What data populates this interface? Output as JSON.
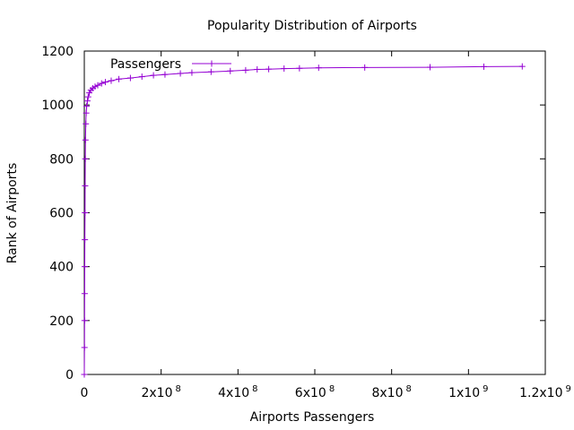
{
  "chart_data": {
    "type": "line",
    "title": "Popularity Distribution of Airports",
    "xlabel": "Airports Passengers",
    "ylabel": "Rank of Airports",
    "xlim": [
      0,
      1200000000
    ],
    "ylim": [
      0,
      1200
    ],
    "grid": false,
    "legend_position": "top-left",
    "x_ticks": [
      {
        "value": 0,
        "base": "0",
        "exp": ""
      },
      {
        "value": 200000000,
        "base": "2x10",
        "exp": "8"
      },
      {
        "value": 400000000,
        "base": "4x10",
        "exp": "8"
      },
      {
        "value": 600000000,
        "base": "6x10",
        "exp": "8"
      },
      {
        "value": 800000000,
        "base": "8x10",
        "exp": "8"
      },
      {
        "value": 1000000000,
        "base": "1x10",
        "exp": "9"
      },
      {
        "value": 1200000000,
        "base": "1.2x10",
        "exp": "9"
      }
    ],
    "y_ticks": [
      {
        "value": 0,
        "label": "0"
      },
      {
        "value": 200,
        "label": "200"
      },
      {
        "value": 400,
        "label": "400"
      },
      {
        "value": 600,
        "label": "600"
      },
      {
        "value": 800,
        "label": "800"
      },
      {
        "value": 1000,
        "label": "1000"
      },
      {
        "value": 1200,
        "label": "1200"
      }
    ],
    "series": [
      {
        "name": "Passengers",
        "color": "#9400d3",
        "points": [
          [
            0,
            0
          ],
          [
            500000,
            100
          ],
          [
            800000,
            200
          ],
          [
            1000000,
            300
          ],
          [
            1200000,
            400
          ],
          [
            1500000,
            500
          ],
          [
            1800000,
            600
          ],
          [
            2200000,
            700
          ],
          [
            2600000,
            800
          ],
          [
            3000000,
            870
          ],
          [
            4000000,
            930
          ],
          [
            5000000,
            970
          ],
          [
            6000000,
            995
          ],
          [
            8000000,
            1015
          ],
          [
            10000000,
            1030
          ],
          [
            13000000,
            1045
          ],
          [
            17000000,
            1055
          ],
          [
            22000000,
            1062
          ],
          [
            28000000,
            1068
          ],
          [
            35000000,
            1073
          ],
          [
            45000000,
            1080
          ],
          [
            55000000,
            1085
          ],
          [
            70000000,
            1090
          ],
          [
            90000000,
            1096
          ],
          [
            120000000,
            1100
          ],
          [
            150000000,
            1105
          ],
          [
            180000000,
            1110
          ],
          [
            210000000,
            1113
          ],
          [
            250000000,
            1117
          ],
          [
            280000000,
            1120
          ],
          [
            330000000,
            1123
          ],
          [
            380000000,
            1126
          ],
          [
            420000000,
            1129
          ],
          [
            450000000,
            1132
          ],
          [
            480000000,
            1133
          ],
          [
            520000000,
            1135
          ],
          [
            560000000,
            1136
          ],
          [
            610000000,
            1138
          ],
          [
            730000000,
            1139
          ],
          [
            900000000,
            1140
          ],
          [
            1040000000,
            1142
          ],
          [
            1140000000,
            1143
          ]
        ]
      }
    ]
  }
}
